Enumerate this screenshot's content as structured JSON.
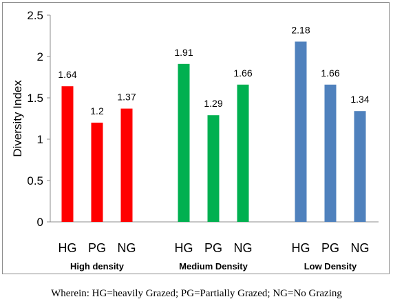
{
  "chart_data": {
    "type": "bar",
    "ylabel": "Diversity Index",
    "ylim": [
      0,
      2.5
    ],
    "yticks": [
      "0",
      "0.5",
      "1",
      "1.5",
      "2",
      "2.5"
    ],
    "grid": false,
    "groups": [
      {
        "label": "High density",
        "color": "#ff0000",
        "bars": [
          {
            "category": "HG",
            "value": 1.64,
            "label": "1.64"
          },
          {
            "category": "PG",
            "value": 1.2,
            "label": "1.2"
          },
          {
            "category": "NG",
            "value": 1.37,
            "label": "1.37"
          }
        ]
      },
      {
        "label": "Medium Density",
        "color": "#00b050",
        "bars": [
          {
            "category": "HG",
            "value": 1.91,
            "label": "1.91"
          },
          {
            "category": "PG",
            "value": 1.29,
            "label": "1.29"
          },
          {
            "category": "NG",
            "value": 1.66,
            "label": "1.66"
          }
        ]
      },
      {
        "label": "Low Density",
        "color": "#4f81bd",
        "bars": [
          {
            "category": "HG",
            "value": 2.18,
            "label": "2.18"
          },
          {
            "category": "PG",
            "value": 1.66,
            "label": "1.66"
          },
          {
            "category": "NG",
            "value": 1.34,
            "label": "1.34"
          }
        ]
      }
    ]
  },
  "caption": "Wherein: HG=heavily Grazed; PG=Partially Grazed; NG=No Grazing"
}
